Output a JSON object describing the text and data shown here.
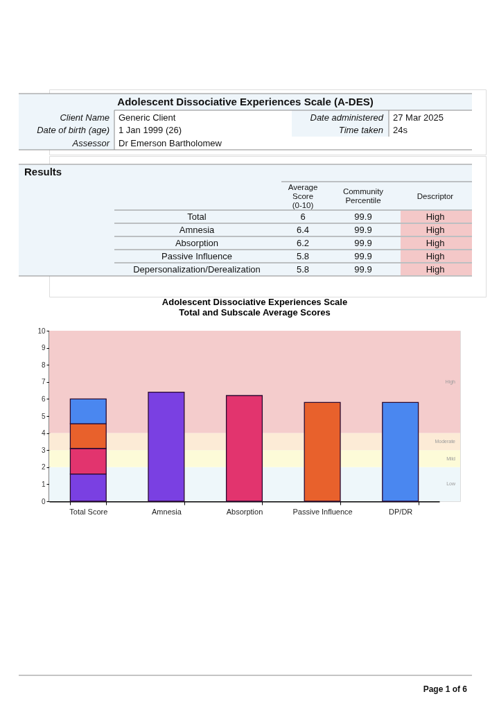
{
  "chart_data": [
    {
      "type": "other",
      "title": "Adolescent Dissociative Experiences Scale (A-DES)",
      "annotations": [
        "Client Name",
        "Generic Client",
        "Date of birth (age)",
        "1 Jan 1999 (26)",
        "Assessor",
        "Dr Emerson Bartholomew",
        "Date administered",
        "27 Mar 2025",
        "Time taken",
        "24s"
      ]
    },
    {
      "type": "other",
      "title": "Results",
      "categories": [
        "Total",
        "Amnesia",
        "Absorption",
        "Passive Influence",
        "Depersonalization/Derealization"
      ],
      "series": [
        {
          "name": "Average Score (0-10)",
          "values": [
            6,
            6.4,
            6.2,
            5.8,
            5.8
          ]
        },
        {
          "name": "Community Percentile",
          "values": [
            99.9,
            99.9,
            99.9,
            99.9,
            99.9
          ]
        }
      ],
      "data_labels": true,
      "annotations": [
        "Descriptor",
        "High",
        "High",
        "High",
        "High",
        "High"
      ]
    },
    {
      "type": "bar",
      "title": "Adolescent Dissociative Experiences Scale",
      "subtitle": "Total and Subscale Average Scores",
      "categories": [
        "Total Score",
        "Amnesia",
        "Absorption",
        "Passive Influence",
        "DP/DR"
      ],
      "stacked": true,
      "series": [
        {
          "color": "#7a40e2",
          "values": [
            1.6,
            6.4,
            null,
            null,
            null
          ]
        },
        {
          "color": "#e2346e",
          "values": [
            1.5,
            null,
            6.2,
            null,
            null
          ]
        },
        {
          "color": "#e8612c",
          "values": [
            1.45,
            null,
            null,
            5.8,
            null
          ]
        },
        {
          "color": "#4a87f0",
          "values": [
            1.45,
            null,
            null,
            null,
            5.8
          ]
        }
      ],
      "ylim": [
        0,
        10
      ],
      "yticks": [
        0,
        1,
        2,
        3,
        4,
        5,
        6,
        7,
        8,
        9,
        10
      ],
      "bands": [
        {
          "axis": "y",
          "from": 0,
          "to": 2,
          "label": "Low",
          "color": "#eef7fa"
        },
        {
          "axis": "y",
          "from": 2,
          "to": 3,
          "label": "Mild",
          "color": "#fdfbd8"
        },
        {
          "axis": "y",
          "from": 3,
          "to": 4,
          "label": "Moderate",
          "color": "#fcebd6"
        },
        {
          "axis": "y",
          "from": 4,
          "to": 10,
          "label": "High",
          "color": "#f4cccc"
        }
      ],
      "annotations": [
        "Page 1 of 6"
      ]
    }
  ]
}
